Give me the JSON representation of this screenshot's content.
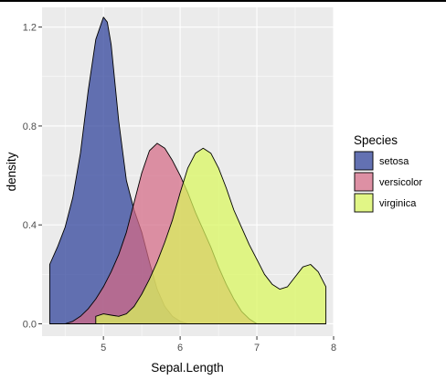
{
  "chart_data": {
    "type": "area",
    "subtype": "density",
    "xlabel": "Sepal.Length",
    "ylabel": "density",
    "xlim": [
      4.2,
      8.0
    ],
    "ylim": [
      -0.05,
      1.28
    ],
    "x_ticks": [
      5,
      6,
      7,
      8
    ],
    "x_tick_labels": [
      "5",
      "6",
      "7",
      "8"
    ],
    "y_ticks": [
      0.0,
      0.4,
      0.8,
      1.2
    ],
    "y_tick_labels": [
      "0.0",
      "0.4",
      "0.8",
      "1.2"
    ],
    "grid": true,
    "legend": {
      "title": "Species",
      "position": "right"
    },
    "series": [
      {
        "name": "setosa",
        "color": "#2b3f99",
        "x": [
          4.3,
          4.4,
          4.5,
          4.6,
          4.7,
          4.8,
          4.9,
          5.0,
          5.05,
          5.1,
          5.2,
          5.3,
          5.4,
          5.5,
          5.6,
          5.7,
          5.8,
          5.9,
          6.0,
          6.1
        ],
        "y": [
          0.24,
          0.31,
          0.39,
          0.51,
          0.69,
          0.94,
          1.15,
          1.24,
          1.22,
          1.13,
          0.82,
          0.58,
          0.46,
          0.37,
          0.25,
          0.14,
          0.07,
          0.03,
          0.01,
          0.0
        ]
      },
      {
        "name": "versicolor",
        "color": "#d46a85",
        "x": [
          4.5,
          4.6,
          4.7,
          4.8,
          4.9,
          5.0,
          5.1,
          5.2,
          5.3,
          5.4,
          5.5,
          5.6,
          5.7,
          5.8,
          5.9,
          6.0,
          6.1,
          6.2,
          6.3,
          6.4,
          6.5,
          6.6,
          6.7,
          6.8,
          6.9,
          7.0
        ],
        "y": [
          0.0,
          0.01,
          0.03,
          0.06,
          0.1,
          0.15,
          0.21,
          0.28,
          0.37,
          0.49,
          0.61,
          0.7,
          0.73,
          0.71,
          0.66,
          0.6,
          0.53,
          0.45,
          0.38,
          0.31,
          0.23,
          0.16,
          0.1,
          0.05,
          0.02,
          0.0
        ]
      },
      {
        "name": "virginica",
        "color": "#d9f75c",
        "x": [
          4.9,
          5.0,
          5.1,
          5.2,
          5.3,
          5.4,
          5.5,
          5.6,
          5.7,
          5.8,
          5.9,
          6.0,
          6.1,
          6.2,
          6.3,
          6.4,
          6.5,
          6.6,
          6.7,
          6.8,
          6.9,
          7.0,
          7.1,
          7.2,
          7.3,
          7.4,
          7.5,
          7.6,
          7.7,
          7.8,
          7.9
        ],
        "y": [
          0.03,
          0.04,
          0.035,
          0.03,
          0.04,
          0.07,
          0.12,
          0.18,
          0.25,
          0.33,
          0.42,
          0.53,
          0.63,
          0.69,
          0.71,
          0.69,
          0.63,
          0.55,
          0.46,
          0.39,
          0.32,
          0.26,
          0.2,
          0.16,
          0.14,
          0.15,
          0.19,
          0.23,
          0.24,
          0.21,
          0.15
        ]
      }
    ]
  }
}
